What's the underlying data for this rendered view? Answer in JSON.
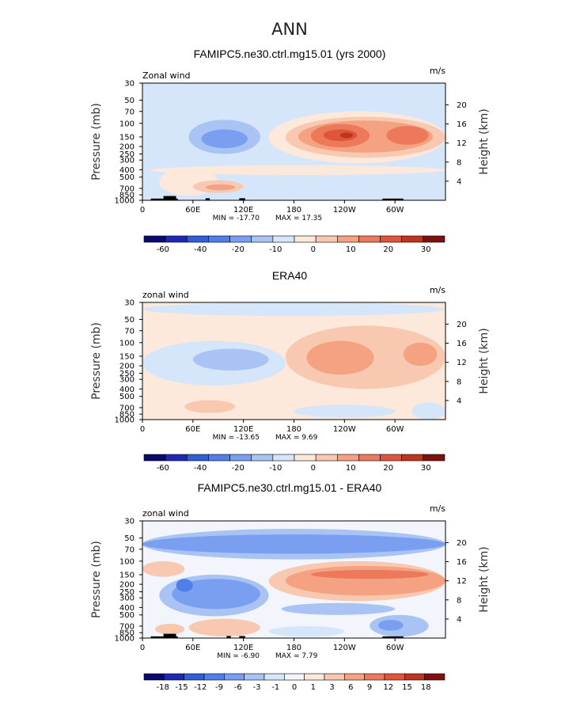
{
  "title": "ANN",
  "colors": {
    "wind_scale": [
      "#0a0a6e",
      "#1e28b4",
      "#2f5fd6",
      "#4f7fe8",
      "#7b9ff0",
      "#a9c4f4",
      "#d6e6fa",
      "#fde8dc",
      "#f8c8b0",
      "#f4a282",
      "#ec7a5a",
      "#e0553a",
      "#c0341f",
      "#801010"
    ],
    "diff_scale": [
      "#0a0a6e",
      "#1e28b4",
      "#2f5fd6",
      "#4f7fe8",
      "#7b9ff0",
      "#a9c4f4",
      "#d6e6fa",
      "#f2f6fc",
      "#fde8dc",
      "#f8c8b0",
      "#f4a282",
      "#ec7a5a",
      "#e0553a",
      "#c0341f",
      "#801010"
    ],
    "topography": "#000000"
  },
  "chart_data": [
    {
      "type": "heatmap",
      "title": "FAMIPC5.ne30.ctrl.mg15.01 (yrs 2000)",
      "variable": "Zonal wind",
      "units": "m/s",
      "xlabel": "",
      "ylabel": "Pressure (mb)",
      "ylabel_right": "Height (km)",
      "x_ticks": [
        "0",
        "60E",
        "120E",
        "180",
        "120W",
        "60W"
      ],
      "x_tick_values": [
        0,
        60,
        120,
        180,
        240,
        300
      ],
      "xlim": [
        0,
        360
      ],
      "y_ticks": [
        "30",
        "50",
        "70",
        "100",
        "150",
        "200",
        "250",
        "300",
        "400",
        "500",
        "700",
        "850",
        "1000"
      ],
      "y_tick_values": [
        30,
        50,
        70,
        100,
        150,
        200,
        250,
        300,
        400,
        500,
        700,
        850,
        1000
      ],
      "ylim": [
        30,
        1000
      ],
      "y_scale": "log",
      "height_ticks": [
        "20",
        "16",
        "12",
        "8",
        "4"
      ],
      "height_tick_values": [
        20,
        16,
        12,
        8,
        4
      ],
      "min_label": "MIN = -17.70",
      "max_label": "MAX = 17.35",
      "min": -17.7,
      "max": 17.35,
      "colorbar_labels": [
        "-60",
        "-40",
        "-20",
        "-10",
        "0",
        "10",
        "20",
        "30"
      ],
      "colorbar_levels": [
        -70,
        -60,
        -50,
        -40,
        -30,
        -20,
        -15,
        -10,
        -5,
        0,
        5,
        10,
        15,
        20,
        25,
        30,
        35
      ],
      "background_bin": 6,
      "blobs": [
        {
          "lon_min": 0,
          "lon_max": 360,
          "p_top": 30,
          "p_bot": 70,
          "bin": 6
        },
        {
          "lon_min": 20,
          "lon_max": 90,
          "p_top": 380,
          "p_bot": 870,
          "bin": 7
        },
        {
          "lon_min": 60,
          "lon_max": 120,
          "p_top": 550,
          "p_bot": 800,
          "bin": 8
        },
        {
          "lon_min": 75,
          "lon_max": 110,
          "p_top": 620,
          "p_bot": 740,
          "bin": 9
        },
        {
          "lon_min": 10,
          "lon_max": 360,
          "p_top": 350,
          "p_bot": 470,
          "bin": 7
        },
        {
          "lon_min": 150,
          "lon_max": 360,
          "p_top": 70,
          "p_bot": 330,
          "bin": 7
        },
        {
          "lon_min": 170,
          "lon_max": 360,
          "p_top": 82,
          "p_bot": 280,
          "bin": 8
        },
        {
          "lon_min": 185,
          "lon_max": 345,
          "p_top": 92,
          "p_bot": 240,
          "bin": 9
        },
        {
          "lon_min": 200,
          "lon_max": 270,
          "p_top": 102,
          "p_bot": 205,
          "bin": 10
        },
        {
          "lon_min": 290,
          "lon_max": 340,
          "p_top": 108,
          "p_bot": 190,
          "bin": 10
        },
        {
          "lon_min": 215,
          "lon_max": 255,
          "p_top": 120,
          "p_bot": 170,
          "bin": 11
        },
        {
          "lon_min": 235,
          "lon_max": 250,
          "p_top": 132,
          "p_bot": 155,
          "bin": 12
        },
        {
          "lon_min": 55,
          "lon_max": 140,
          "p_top": 90,
          "p_bot": 250,
          "bin": 5
        },
        {
          "lon_min": 70,
          "lon_max": 125,
          "p_top": 120,
          "p_bot": 210,
          "bin": 4
        }
      ],
      "topography": [
        {
          "lon_min": 10,
          "lon_max": 25,
          "p_top": 950
        },
        {
          "lon_min": 25,
          "lon_max": 40,
          "p_top": 880
        },
        {
          "lon_min": 40,
          "lon_max": 42,
          "p_top": 950
        },
        {
          "lon_min": 75,
          "lon_max": 80,
          "p_top": 940
        },
        {
          "lon_min": 115,
          "lon_max": 122,
          "p_top": 940
        },
        {
          "lon_min": 285,
          "lon_max": 310,
          "p_top": 950
        }
      ]
    },
    {
      "type": "heatmap",
      "title": "ERA40",
      "variable": "zonal wind",
      "units": "m/s",
      "xlabel": "",
      "ylabel": "Pressure (mb)",
      "ylabel_right": "Height (km)",
      "x_ticks": [
        "0",
        "60E",
        "120E",
        "180",
        "120W",
        "60W"
      ],
      "x_tick_values": [
        0,
        60,
        120,
        180,
        240,
        300
      ],
      "xlim": [
        0,
        360
      ],
      "y_ticks": [
        "30",
        "50",
        "70",
        "100",
        "150",
        "200",
        "250",
        "300",
        "400",
        "500",
        "700",
        "850",
        "1000"
      ],
      "y_tick_values": [
        30,
        50,
        70,
        100,
        150,
        200,
        250,
        300,
        400,
        500,
        700,
        850,
        1000
      ],
      "ylim": [
        30,
        1000
      ],
      "y_scale": "log",
      "height_ticks": [
        "20",
        "16",
        "12",
        "8",
        "4"
      ],
      "height_tick_values": [
        20,
        16,
        12,
        8,
        4
      ],
      "min_label": "MIN = -13.65",
      "max_label": "MAX = 9.69",
      "min": -13.65,
      "max": 9.69,
      "colorbar_labels": [
        "-60",
        "-40",
        "-20",
        "-10",
        "0",
        "10",
        "20",
        "30"
      ],
      "colorbar_levels": [
        -70,
        -60,
        -50,
        -40,
        -30,
        -20,
        -15,
        -10,
        -5,
        0,
        5,
        10,
        15,
        20,
        25,
        30,
        35
      ],
      "background_bin": 7,
      "blobs": [
        {
          "lon_min": 0,
          "lon_max": 360,
          "p_top": 30,
          "p_bot": 45,
          "bin": 6
        },
        {
          "lon_min": 0,
          "lon_max": 170,
          "p_top": 95,
          "p_bot": 360,
          "bin": 6
        },
        {
          "lon_min": 60,
          "lon_max": 150,
          "p_top": 120,
          "p_bot": 230,
          "bin": 5
        },
        {
          "lon_min": 170,
          "lon_max": 360,
          "p_top": 60,
          "p_bot": 400,
          "bin": 8
        },
        {
          "lon_min": 195,
          "lon_max": 275,
          "p_top": 95,
          "p_bot": 260,
          "bin": 9
        },
        {
          "lon_min": 310,
          "lon_max": 350,
          "p_top": 100,
          "p_bot": 200,
          "bin": 9
        },
        {
          "lon_min": 50,
          "lon_max": 110,
          "p_top": 560,
          "p_bot": 820,
          "bin": 8
        },
        {
          "lon_min": 180,
          "lon_max": 300,
          "p_top": 640,
          "p_bot": 950,
          "bin": 6
        },
        {
          "lon_min": 320,
          "lon_max": 360,
          "p_top": 600,
          "p_bot": 1000,
          "bin": 6
        }
      ],
      "topography": []
    },
    {
      "type": "heatmap",
      "title": "FAMIPC5.ne30.ctrl.mg15.01 - ERA40",
      "variable": "zonal wind",
      "units": "m/s",
      "xlabel": "",
      "ylabel": "Pressure (mb)",
      "ylabel_right": "Height (km)",
      "x_ticks": [
        "0",
        "60E",
        "120E",
        "180",
        "120W",
        "60W"
      ],
      "x_tick_values": [
        0,
        60,
        120,
        180,
        240,
        300
      ],
      "xlim": [
        0,
        360
      ],
      "y_ticks": [
        "30",
        "50",
        "70",
        "100",
        "150",
        "200",
        "250",
        "300",
        "400",
        "500",
        "700",
        "850",
        "1000"
      ],
      "y_tick_values": [
        30,
        50,
        70,
        100,
        150,
        200,
        250,
        300,
        400,
        500,
        700,
        850,
        1000
      ],
      "ylim": [
        30,
        1000
      ],
      "y_scale": "log",
      "height_ticks": [
        "20",
        "16",
        "12",
        "8",
        "4"
      ],
      "height_tick_values": [
        20,
        16,
        12,
        8,
        4
      ],
      "min_label": "MIN = -6.90",
      "max_label": "MAX = 7.79",
      "min": -6.9,
      "max": 7.79,
      "colorbar_labels": [
        "-18",
        "-15",
        "-12",
        "-9",
        "-6",
        "-3",
        "-1",
        "0",
        "1",
        "3",
        "6",
        "9",
        "12",
        "15",
        "18"
      ],
      "colorbar_levels": [
        -21,
        -18,
        -15,
        -12,
        -9,
        -6,
        -3,
        -1,
        0,
        1,
        3,
        6,
        9,
        12,
        15,
        18,
        21
      ],
      "background_bin": 7,
      "blobs": [
        {
          "lon_min": 0,
          "lon_max": 360,
          "p_top": 38,
          "p_bot": 95,
          "bin": 5
        },
        {
          "lon_min": 0,
          "lon_max": 360,
          "p_top": 45,
          "p_bot": 80,
          "bin": 4
        },
        {
          "lon_min": 20,
          "lon_max": 150,
          "p_top": 150,
          "p_bot": 520,
          "bin": 5
        },
        {
          "lon_min": 35,
          "lon_max": 140,
          "p_top": 170,
          "p_bot": 420,
          "bin": 4
        },
        {
          "lon_min": 40,
          "lon_max": 60,
          "p_top": 170,
          "p_bot": 250,
          "bin": 3
        },
        {
          "lon_min": 0,
          "lon_max": 50,
          "p_top": 100,
          "p_bot": 160,
          "bin": 9
        },
        {
          "lon_min": 150,
          "lon_max": 360,
          "p_top": 100,
          "p_bot": 330,
          "bin": 9
        },
        {
          "lon_min": 170,
          "lon_max": 360,
          "p_top": 115,
          "p_bot": 280,
          "bin": 10
        },
        {
          "lon_min": 200,
          "lon_max": 340,
          "p_top": 130,
          "p_bot": 170,
          "bin": 11
        },
        {
          "lon_min": 165,
          "lon_max": 300,
          "p_top": 350,
          "p_bot": 500,
          "bin": 5
        },
        {
          "lon_min": 270,
          "lon_max": 340,
          "p_top": 500,
          "p_bot": 960,
          "bin": 5
        },
        {
          "lon_min": 280,
          "lon_max": 310,
          "p_top": 580,
          "p_bot": 800,
          "bin": 4
        },
        {
          "lon_min": 55,
          "lon_max": 140,
          "p_top": 560,
          "p_bot": 950,
          "bin": 9
        },
        {
          "lon_min": 15,
          "lon_max": 50,
          "p_top": 650,
          "p_bot": 900,
          "bin": 9
        },
        {
          "lon_min": 150,
          "lon_max": 240,
          "p_top": 700,
          "p_bot": 960,
          "bin": 6
        }
      ],
      "topography": [
        {
          "lon_min": 10,
          "lon_max": 25,
          "p_top": 950
        },
        {
          "lon_min": 25,
          "lon_max": 40,
          "p_top": 880
        },
        {
          "lon_min": 40,
          "lon_max": 42,
          "p_top": 950
        },
        {
          "lon_min": 100,
          "lon_max": 105,
          "p_top": 940
        },
        {
          "lon_min": 115,
          "lon_max": 122,
          "p_top": 940
        },
        {
          "lon_min": 285,
          "lon_max": 310,
          "p_top": 950
        }
      ]
    }
  ]
}
